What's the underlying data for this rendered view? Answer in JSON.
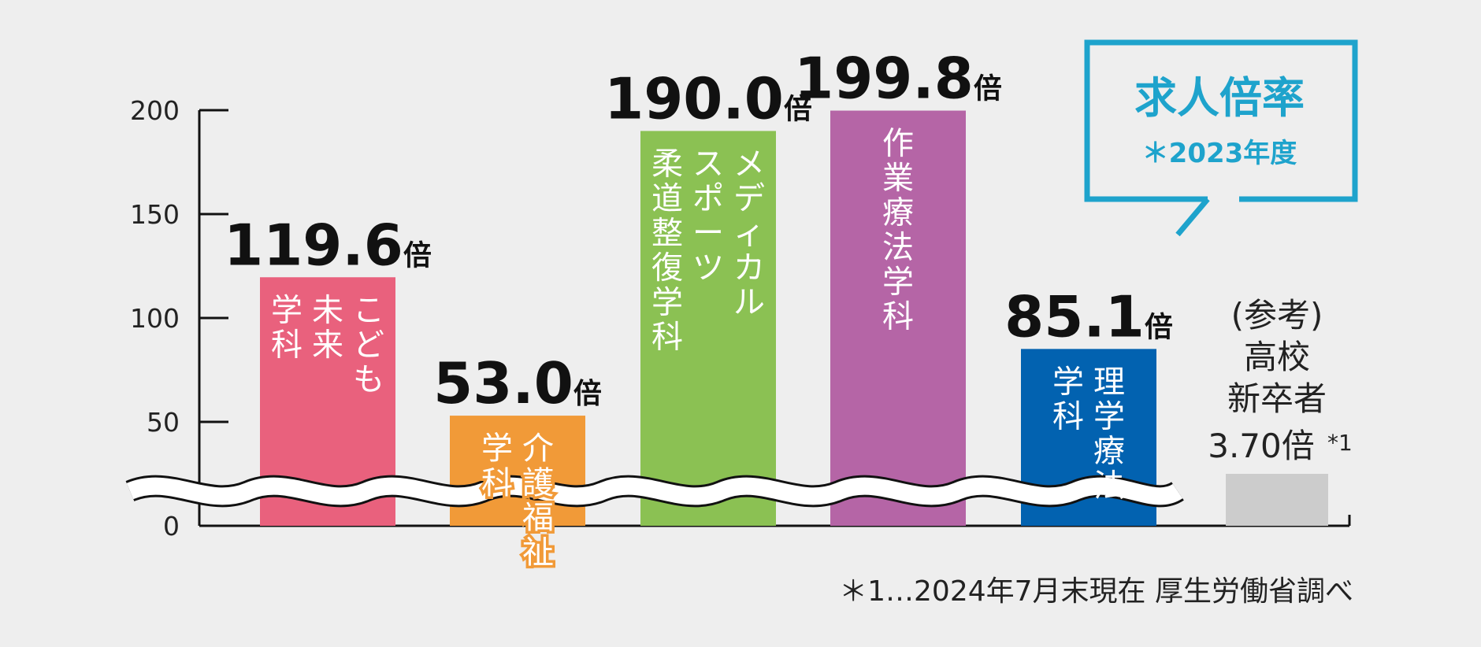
{
  "chart_data": {
    "type": "bar",
    "unit": "倍",
    "ylim": [
      0,
      200
    ],
    "yticks": [
      "0",
      "50",
      "100",
      "150",
      "200"
    ],
    "axis_break": true,
    "categories": [
      "こども未来学科",
      "介護福祉学科",
      "メディカルスポーツ柔道整復学科",
      "作業療法学科",
      "理学療法学科"
    ],
    "values": [
      119.6,
      53.0,
      190.0,
      199.8,
      85.1
    ],
    "value_labels": [
      "119.6",
      "53.0",
      "190.0",
      "199.8",
      "85.1"
    ],
    "colors": [
      "#e9617d",
      "#f19a38",
      "#8bc153",
      "#b565a6",
      "#0262b0"
    ],
    "bar_label_lines": [
      [
        "こども",
        "未来",
        "学科"
      ],
      [
        "介護福祉",
        "学科"
      ],
      [
        "メディカル",
        "スポーツ",
        "柔道整復学科"
      ],
      [
        "作業療法学科"
      ],
      [
        "理学療法",
        "学科"
      ]
    ],
    "reference": {
      "lines": [
        "(参考)",
        "高校",
        "新卒者"
      ],
      "value_label": "3.70倍",
      "note_mark": "*1",
      "value": 3.7,
      "color": "#cccccc"
    },
    "callout": {
      "title": "求人倍率",
      "subtitle": "＊2023年度",
      "color": "#1ea3cc"
    },
    "footnote": "＊1…2024年7月末現在 厚生労働省調べ"
  }
}
